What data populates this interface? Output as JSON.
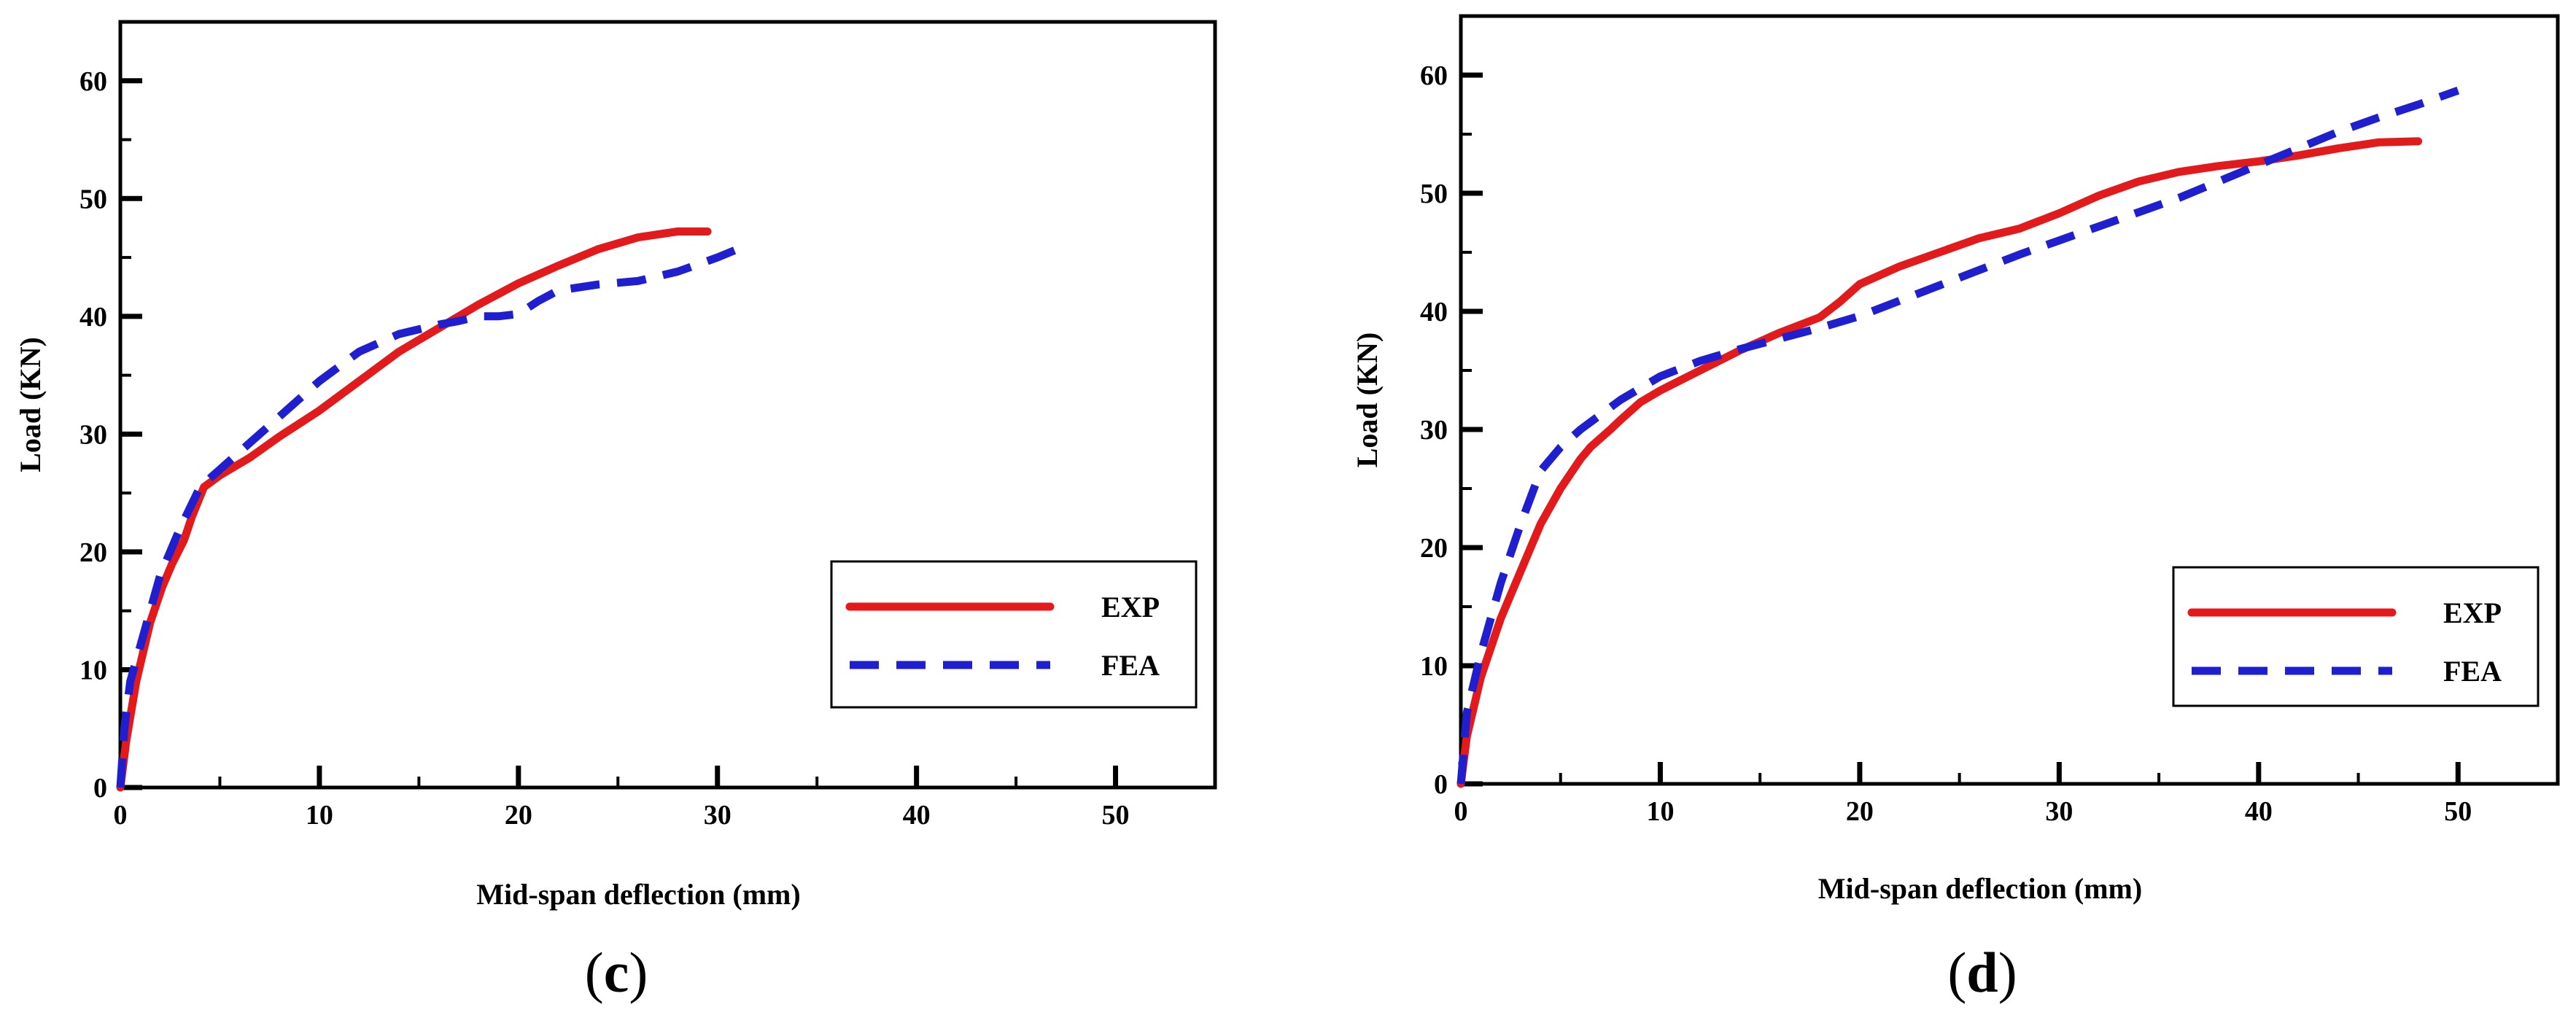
{
  "colors": {
    "exp": "#e31a1c",
    "fea": "#1f1fcf",
    "axis": "#000000"
  },
  "chart_data": [
    {
      "type": "line",
      "panel_label": {
        "open": "(",
        "letter": "c",
        "close": ")"
      },
      "xlabel": "Mid-span deflection (mm)",
      "ylabel": "Load (KN)",
      "xlim": [
        0,
        55
      ],
      "ylim": [
        0,
        65
      ],
      "xticks": [
        0,
        10,
        20,
        30,
        40,
        50
      ],
      "yticks": [
        0,
        10,
        20,
        30,
        40,
        50,
        60
      ],
      "legend": {
        "position": "bottom-right",
        "entries": [
          "EXP",
          "FEA"
        ]
      },
      "series": [
        {
          "name": "EXP",
          "style": "solid",
          "x": [
            0,
            0.3,
            0.8,
            1.5,
            2.1,
            2.6,
            3.2,
            3.6,
            4.2,
            5,
            6.5,
            8,
            10,
            12,
            14,
            16,
            18,
            20,
            22,
            24,
            26,
            28,
            29.5
          ],
          "y": [
            0,
            4,
            9,
            14,
            17,
            19,
            21,
            23,
            25.5,
            26.5,
            28,
            29.8,
            32,
            34.5,
            37,
            39,
            41,
            42.8,
            44.3,
            45.7,
            46.7,
            47.2,
            47.2
          ]
        },
        {
          "name": "FEA",
          "style": "dashed",
          "x": [
            0,
            0.2,
            0.5,
            1,
            1.5,
            2,
            3,
            4,
            5,
            6,
            8,
            10,
            12,
            14,
            16,
            17,
            18,
            19,
            20,
            21,
            22,
            24,
            26,
            28,
            30,
            31
          ],
          "y": [
            0,
            5,
            9,
            12,
            15,
            18,
            22,
            25.5,
            27,
            28.5,
            31.5,
            34.5,
            37,
            38.5,
            39.3,
            39.6,
            40,
            40,
            40.2,
            41.3,
            42.2,
            42.7,
            43,
            43.8,
            45,
            45.7
          ]
        }
      ]
    },
    {
      "type": "line",
      "panel_label": {
        "open": "(",
        "letter": "d",
        "close": ")"
      },
      "xlabel": "Mid-span deflection (mm)",
      "ylabel": "Load (KN)",
      "xlim": [
        0,
        55
      ],
      "ylim": [
        0,
        65
      ],
      "xticks": [
        0,
        10,
        20,
        30,
        40,
        50
      ],
      "yticks": [
        0,
        10,
        20,
        30,
        40,
        50,
        60
      ],
      "legend": {
        "position": "bottom-right",
        "entries": [
          "EXP",
          "FEA"
        ]
      },
      "series": [
        {
          "name": "EXP",
          "style": "solid",
          "x": [
            0,
            0.3,
            1,
            2,
            3,
            4,
            5,
            6,
            6.5,
            7.5,
            8,
            9,
            10,
            12,
            14,
            16,
            18,
            19,
            20,
            22,
            24,
            26,
            28,
            30,
            32,
            34,
            36,
            38,
            40,
            42,
            44,
            46,
            48
          ],
          "y": [
            0,
            4,
            9,
            14,
            18,
            22,
            25,
            27.5,
            28.5,
            30,
            30.8,
            32.3,
            33.3,
            35,
            36.7,
            38.2,
            39.5,
            40.8,
            42.3,
            43.8,
            45,
            46.2,
            47,
            48.3,
            49.8,
            51,
            51.8,
            52.3,
            52.7,
            53.2,
            53.8,
            54.3,
            54.4
          ]
        },
        {
          "name": "FEA",
          "style": "dashed",
          "x": [
            0,
            0.3,
            1,
            2,
            3,
            4,
            5,
            6,
            8,
            10,
            12,
            14,
            16,
            18,
            20,
            22,
            24,
            26,
            28,
            30,
            32,
            34,
            36,
            38,
            40,
            42,
            44,
            46,
            48,
            50
          ],
          "y": [
            0,
            6,
            11,
            17,
            22,
            26.5,
            28.5,
            30,
            32.5,
            34.5,
            35.8,
            36.8,
            37.7,
            38.6,
            39.6,
            40.9,
            42.2,
            43.5,
            44.8,
            46,
            47.2,
            48.4,
            49.6,
            51,
            52.4,
            53.8,
            55.2,
            56.4,
            57.5,
            58.7
          ]
        }
      ]
    }
  ]
}
